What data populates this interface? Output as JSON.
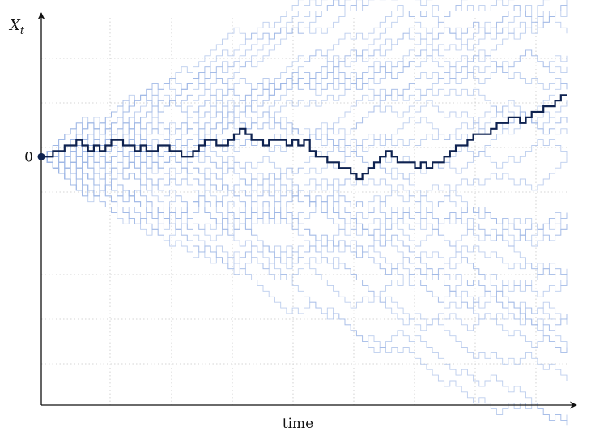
{
  "chart_data": {
    "type": "line",
    "title": "",
    "xlabel": "time",
    "ylabel": "X",
    "ylabel_subscript": "t",
    "y_tick_label": "0",
    "y_tick_value": 0,
    "x_steps": 90,
    "xlim": [
      0,
      90
    ],
    "ylim": [
      -40,
      20
    ],
    "grid": true,
    "background_paths": {
      "count": 40,
      "color": "#9fb8e6"
    },
    "highlight_color": "#0e2250",
    "highlight_series": {
      "x": [
        0,
        2,
        3,
        4,
        5,
        6,
        7,
        8,
        9,
        10,
        11,
        12,
        13,
        14,
        15,
        16,
        17,
        18,
        19,
        20,
        21,
        22,
        23,
        24,
        25,
        26,
        27,
        28,
        29,
        30,
        31,
        32,
        33,
        34,
        35,
        36,
        37,
        38,
        39,
        40,
        41,
        42,
        43,
        44,
        45,
        46,
        47,
        48,
        49,
        50,
        51,
        52,
        53,
        54,
        55,
        56,
        57,
        58,
        59,
        60,
        61,
        62,
        63,
        64,
        65,
        66,
        67,
        68,
        69,
        70,
        71,
        72,
        73,
        74,
        75,
        76,
        77,
        78,
        79,
        80,
        81,
        82,
        83,
        84,
        85,
        86,
        87,
        88,
        89,
        90
      ],
      "y": [
        0,
        1,
        1,
        2,
        2,
        3,
        2,
        1,
        2,
        1,
        2,
        3,
        3,
        2,
        2,
        1,
        2,
        1,
        1,
        2,
        2,
        1,
        1,
        0,
        0,
        1,
        2,
        3,
        3,
        2,
        2,
        3,
        4,
        5,
        4,
        3,
        3,
        2,
        3,
        3,
        3,
        2,
        3,
        2,
        3,
        1,
        0,
        0,
        -1,
        -1,
        -2,
        -2,
        -3,
        -4,
        -3,
        -2,
        -1,
        0,
        1,
        0,
        -1,
        -1,
        -1,
        -2,
        -1,
        -2,
        -1,
        -1,
        0,
        1,
        2,
        2,
        3,
        4,
        4,
        4,
        5,
        6,
        6,
        7,
        7,
        6,
        7,
        8,
        8,
        9,
        9,
        10,
        11,
        11
      ]
    }
  }
}
